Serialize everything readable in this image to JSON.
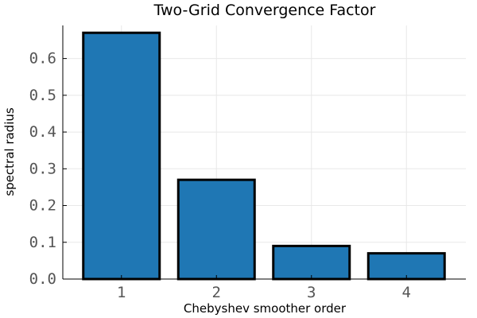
{
  "chart_data": {
    "type": "bar",
    "title": "Two-Grid Convergence Factor",
    "xlabel": "Chebyshev smoother order",
    "ylabel": "spectral radius",
    "categories": [
      "1",
      "2",
      "3",
      "4"
    ],
    "values": [
      0.67,
      0.27,
      0.09,
      0.07
    ],
    "ylim": [
      0,
      0.69
    ],
    "yticks": [
      "0.0",
      "0.1",
      "0.2",
      "0.3",
      "0.4",
      "0.5",
      "0.6"
    ],
    "bar_color": "#1f77b4",
    "edge_color": "#000000",
    "grid": true,
    "legend": "none"
  }
}
